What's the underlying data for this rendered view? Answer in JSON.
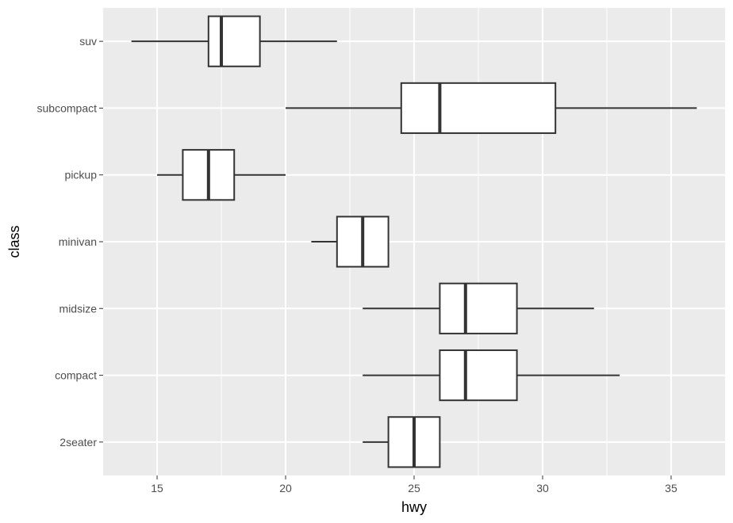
{
  "chart_data": {
    "type": "boxplot",
    "orientation": "horizontal",
    "title": "",
    "xlabel": "hwy",
    "ylabel": "class",
    "xlim": [
      12.9,
      37.1
    ],
    "x_ticks": [
      15,
      20,
      25,
      30,
      35
    ],
    "grid": true,
    "colors": {
      "panel": "#ebebeb",
      "grid_major": "#ffffff",
      "box_fill": "#ffffff",
      "box_stroke": "#333333"
    },
    "categories": [
      "2seater",
      "compact",
      "midsize",
      "minivan",
      "pickup",
      "subcompact",
      "suv"
    ],
    "boxes": [
      {
        "category": "2seater",
        "whisker_low": 23,
        "q1": 24,
        "median": 25,
        "q3": 26,
        "whisker_high": 26
      },
      {
        "category": "compact",
        "whisker_low": 23,
        "q1": 26,
        "median": 27,
        "q3": 29,
        "whisker_high": 33
      },
      {
        "category": "midsize",
        "whisker_low": 23,
        "q1": 26,
        "median": 27,
        "q3": 29,
        "whisker_high": 32
      },
      {
        "category": "minivan",
        "whisker_low": 21,
        "q1": 22,
        "median": 23,
        "q3": 24,
        "whisker_high": 24
      },
      {
        "category": "pickup",
        "whisker_low": 15,
        "q1": 16,
        "median": 17,
        "q3": 18,
        "whisker_high": 20
      },
      {
        "category": "subcompact",
        "whisker_low": 20,
        "q1": 24.5,
        "median": 26,
        "q3": 30.5,
        "whisker_high": 36
      },
      {
        "category": "suv",
        "whisker_low": 14,
        "q1": 17,
        "median": 17.5,
        "q3": 19,
        "whisker_high": 22
      }
    ]
  }
}
